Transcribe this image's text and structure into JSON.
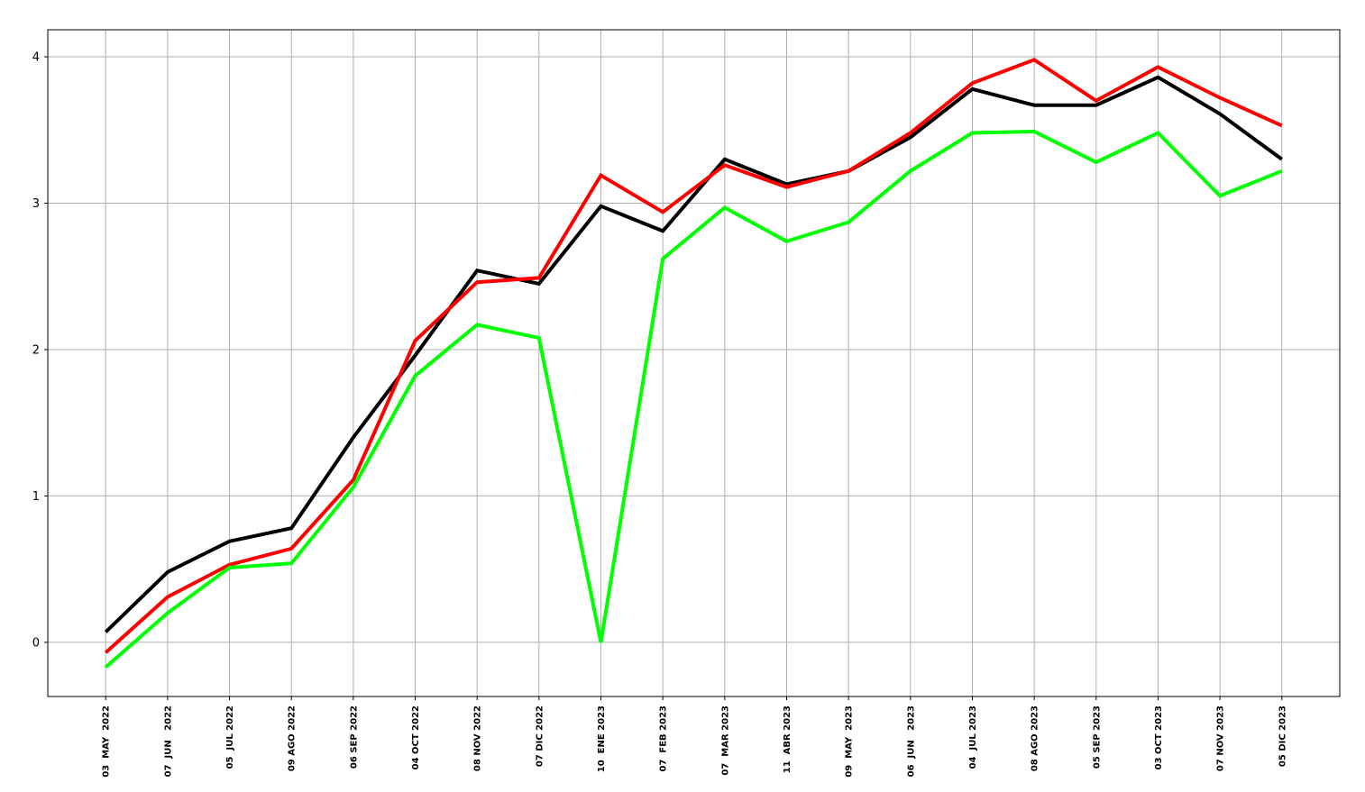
{
  "chart_data": {
    "type": "line",
    "categories": [
      "03  MAY  2022",
      "07  JUN   2022",
      "05  JUL 2022",
      "09 AGO 2022",
      "06 SEP 2022",
      "04 OCT 2022",
      "08 NOV 2022",
      "07 DIC 2022",
      "10  ENE 2023",
      "07  FEB 2023",
      "07  MAR 2023",
      "11  ABR 2023",
      "09  MAY  2023",
      "06  JUN   2023",
      "04  JUL 2023",
      "08 AGO 2023",
      "05 SEP 2023",
      "03 OCT 2023",
      "07 NOV 2023",
      "05 DIC 2023"
    ],
    "series": [
      {
        "color": "#000000",
        "values": [
          0.07,
          0.48,
          0.69,
          0.78,
          1.4,
          1.96,
          2.54,
          2.45,
          2.98,
          2.81,
          3.3,
          3.13,
          3.22,
          3.45,
          3.78,
          3.67,
          3.67,
          3.86,
          3.61,
          3.3
        ]
      },
      {
        "color": "#ff0000",
        "values": [
          -0.07,
          0.31,
          0.53,
          0.64,
          1.11,
          2.06,
          2.46,
          2.49,
          3.19,
          2.94,
          3.26,
          3.11,
          3.22,
          3.48,
          3.82,
          3.98,
          3.7,
          3.93,
          3.72,
          3.53
        ]
      },
      {
        "color": "#00ff00",
        "values": [
          -0.17,
          0.2,
          0.51,
          0.54,
          1.06,
          1.82,
          2.17,
          2.08,
          0.0,
          2.62,
          2.97,
          2.74,
          2.87,
          3.22,
          3.48,
          3.49,
          3.28,
          3.48,
          3.05,
          3.22
        ]
      }
    ],
    "ylim": [
      -0.37,
      4.185
    ],
    "yticks": [
      0,
      1,
      2,
      3,
      4
    ],
    "grid": true
  }
}
